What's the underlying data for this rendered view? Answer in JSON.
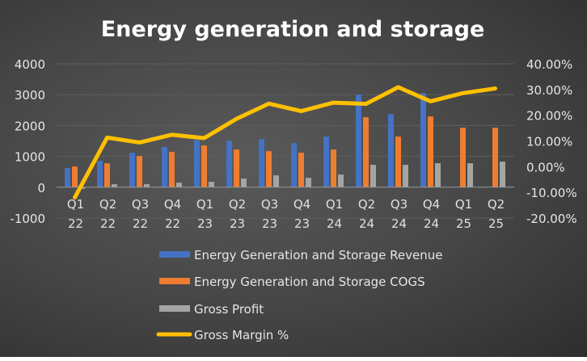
{
  "chart_data": {
    "type": "bar",
    "title": "Energy generation and storage",
    "categories": [
      [
        "Q1",
        "22"
      ],
      [
        "Q2",
        "22"
      ],
      [
        "Q3",
        "22"
      ],
      [
        "Q4",
        "22"
      ],
      [
        "Q1",
        "23"
      ],
      [
        "Q2",
        "23"
      ],
      [
        "Q3",
        "23"
      ],
      [
        "Q4",
        "23"
      ],
      [
        "Q1",
        "24"
      ],
      [
        "Q2",
        "24"
      ],
      [
        "Q3",
        "24"
      ],
      [
        "Q4",
        "24"
      ],
      [
        "Q1",
        "25"
      ],
      [
        "Q2",
        "25"
      ]
    ],
    "y_left": {
      "ylim": [
        -1000,
        4000
      ],
      "ticks": [
        "4000",
        "3000",
        "2000",
        "1000",
        "0",
        "-1000"
      ],
      "tick_values": [
        4000,
        3000,
        2000,
        1000,
        0,
        -1000
      ]
    },
    "y_right": {
      "ylim": [
        -20,
        40
      ],
      "ticks": [
        "40.00%",
        "30.00%",
        "20.00%",
        "10.00%",
        "0.00%",
        "-10.00%",
        "-20.00%"
      ],
      "tick_values": [
        40,
        30,
        20,
        10,
        0,
        -10,
        -20
      ]
    },
    "grid": true,
    "legend_placement": "bottom",
    "series": [
      {
        "name": "Energy Generation and Storage Revenue",
        "kind": "bar",
        "axis": "left",
        "color": "#4472C4",
        "values": [
          620,
          855,
          1117,
          1300,
          1527,
          1510,
          1562,
          1431,
          1640,
          3002,
          2373,
          3054,
          null,
          null
        ]
      },
      {
        "name": "Energy Generation and Storage COGS",
        "kind": "bar",
        "axis": "left",
        "color": "#ED7D31",
        "values": [
          672,
          777,
          1012,
          1143,
          1353,
          1222,
          1169,
          1117,
          1222,
          2269,
          1640,
          2295,
          1928,
          1928
        ]
      },
      {
        "name": "Gross Profit",
        "kind": "bar",
        "axis": "left",
        "color": "#A5A5A5",
        "values": [
          -52,
          96,
          96,
          148,
          175,
          279,
          384,
          305,
          410,
          724,
          724,
          777,
          777,
          829
        ]
      },
      {
        "name": "Gross Margin %",
        "kind": "line",
        "axis": "right",
        "color": "#FFC000",
        "values": [
          -12.0,
          11.3,
          9.4,
          12.4,
          11.1,
          18.6,
          24.5,
          21.6,
          24.9,
          24.4,
          30.9,
          25.4,
          28.6,
          30.4
        ]
      }
    ]
  }
}
